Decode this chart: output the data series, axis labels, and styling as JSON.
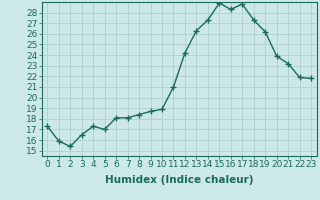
{
  "title": "",
  "xlabel": "Humidex (Indice chaleur)",
  "ylabel": "",
  "x": [
    0,
    1,
    2,
    3,
    4,
    5,
    6,
    7,
    8,
    9,
    10,
    11,
    12,
    13,
    14,
    15,
    16,
    17,
    18,
    19,
    20,
    21,
    22,
    23
  ],
  "y": [
    17.3,
    15.9,
    15.4,
    16.5,
    17.3,
    17.0,
    18.1,
    18.1,
    18.4,
    18.7,
    18.9,
    21.0,
    24.2,
    26.3,
    27.3,
    28.9,
    28.3,
    28.8,
    27.3,
    26.2,
    23.9,
    23.2,
    21.9,
    21.8
  ],
  "line_color": "#1a6b5a",
  "marker": "+",
  "marker_size": 4,
  "bg_color": "#cce8e8",
  "grid_color": "#aacccc",
  "ylim": [
    14.5,
    29.0
  ],
  "xlim": [
    -0.5,
    23.5
  ],
  "yticks": [
    15,
    16,
    17,
    18,
    19,
    20,
    21,
    22,
    23,
    24,
    25,
    26,
    27,
    28
  ],
  "xticks": [
    0,
    1,
    2,
    3,
    4,
    5,
    6,
    7,
    8,
    9,
    10,
    11,
    12,
    13,
    14,
    15,
    16,
    17,
    18,
    19,
    20,
    21,
    22,
    23
  ],
  "xlabel_fontsize": 7.5,
  "tick_fontsize": 6.5,
  "line_width": 1.0
}
